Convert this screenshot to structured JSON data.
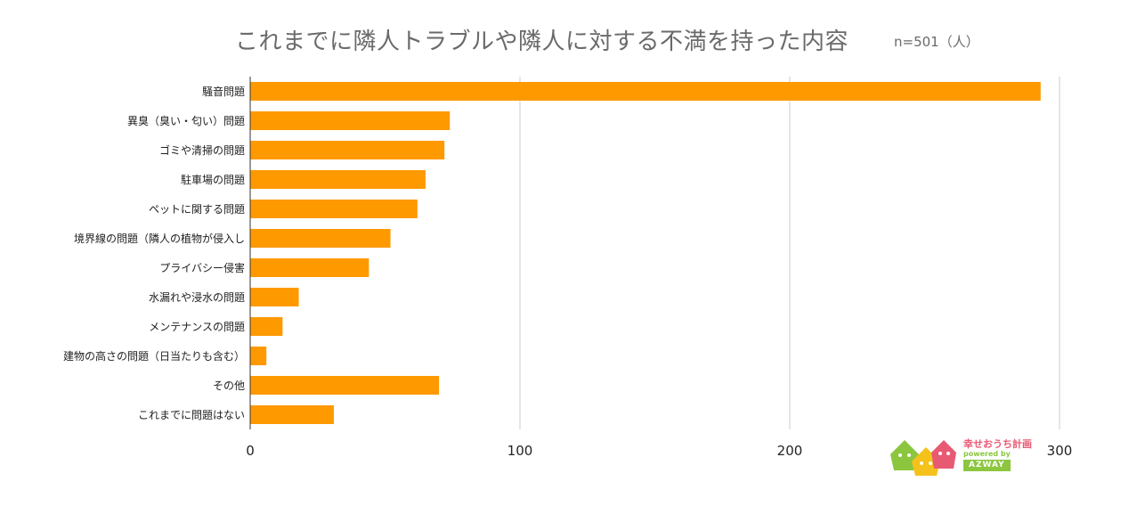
{
  "title": "これまでに隣人トラブルや隣人に対する不満を持った内容",
  "subtitle": "n=501（人）",
  "colors": {
    "bar": "#ff9900",
    "grid": "#cccccc",
    "axis": "#333333",
    "text": "#222222"
  },
  "logo": {
    "name": "幸せおうち計画",
    "tagline": "powered by",
    "brand": "AZWAY"
  },
  "chart_data": {
    "type": "bar",
    "orientation": "horizontal",
    "categories": [
      "騒音問題",
      "異臭（臭い・匂い）問題",
      "ゴミや清掃の問題",
      "駐車場の問題",
      "ペットに関する問題",
      "境界線の問題（隣人の植物が侵入し",
      "プライバシー侵害",
      "水漏れや浸水の問題",
      "メンテナンスの問題",
      "建物の高さの問題（日当たりも含む）",
      "その他",
      "これまでに問題はない"
    ],
    "values": [
      293,
      74,
      72,
      65,
      62,
      52,
      44,
      18,
      12,
      6,
      70,
      31
    ],
    "xlim": [
      0,
      300
    ],
    "xticks": [
      0,
      100,
      200,
      300
    ],
    "grid": true,
    "legend": "none"
  }
}
